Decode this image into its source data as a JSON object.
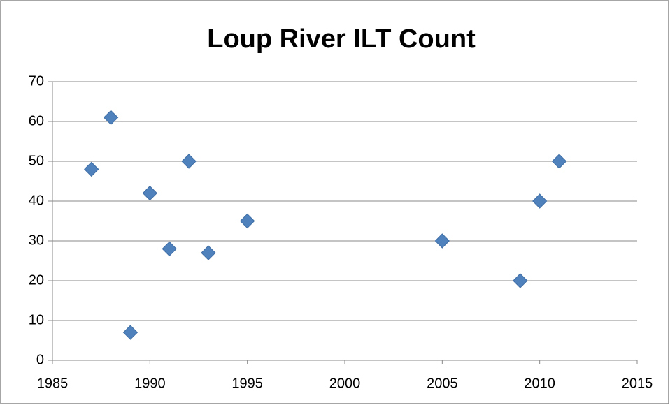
{
  "chart_data": {
    "type": "scatter",
    "title": "Loup River ILT Count",
    "x": [
      1987,
      1988,
      1989,
      1990,
      1991,
      1992,
      1993,
      1995,
      2005,
      2009,
      2010,
      2011
    ],
    "values": [
      48,
      61,
      7,
      42,
      28,
      50,
      27,
      35,
      30,
      20,
      40,
      50
    ],
    "color": "#4f81bd",
    "xlim": [
      1985,
      2015
    ],
    "xticks": [
      1985,
      1990,
      1995,
      2000,
      2005,
      2010,
      2015
    ],
    "ylim": [
      0,
      70
    ],
    "yticks": [
      0,
      10,
      20,
      30,
      40,
      50,
      60,
      70
    ],
    "grid": true
  }
}
